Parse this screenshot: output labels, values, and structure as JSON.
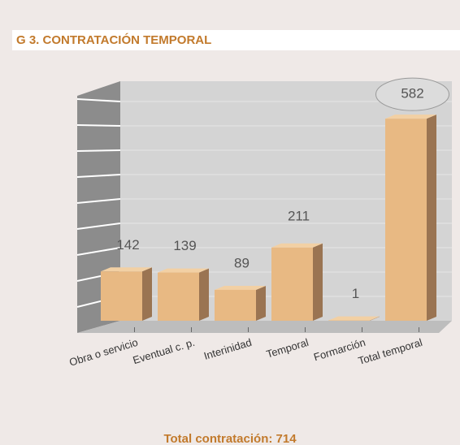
{
  "chart_data": {
    "type": "bar3d",
    "title": "G 3. CONTRATACIÓN TEMPORAL",
    "footer": "Total contratación: 714",
    "categories": [
      "Obra o servicio",
      "Eventual c. p.",
      "Interinidad",
      "Temporal",
      "Formarción",
      "Total temporal"
    ],
    "values": [
      142,
      139,
      89,
      211,
      1,
      582
    ],
    "color": "#e8b983",
    "ylim": [
      0,
      690
    ]
  }
}
